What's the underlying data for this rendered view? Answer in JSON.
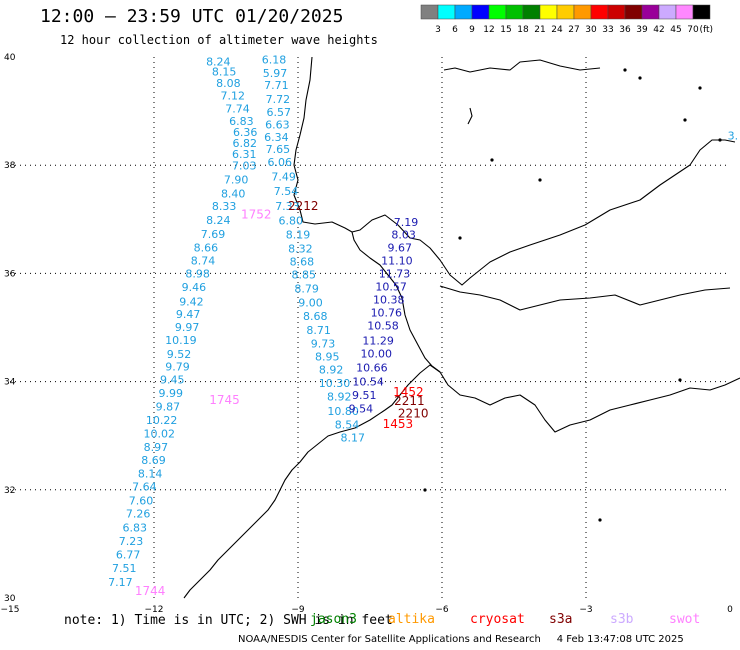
{
  "title": "12:00 — 23:59 UTC 01/20/2025",
  "subtitle": "12 hour collection of altimeter wave heights",
  "colorbar": {
    "unit": "(ft)",
    "bins": [
      {
        "label": "3",
        "color": "#808080"
      },
      {
        "label": "6",
        "color": "#00ffff"
      },
      {
        "label": "9",
        "color": "#00aaff"
      },
      {
        "label": "12",
        "color": "#0000ff"
      },
      {
        "label": "15",
        "color": "#00ff00"
      },
      {
        "label": "18",
        "color": "#00c000"
      },
      {
        "label": "21",
        "color": "#008000"
      },
      {
        "label": "24",
        "color": "#ffff00"
      },
      {
        "label": "27",
        "color": "#ffcc00"
      },
      {
        "label": "30",
        "color": "#ff9900"
      },
      {
        "label": "33",
        "color": "#ff0000"
      },
      {
        "label": "36",
        "color": "#cc0000"
      },
      {
        "label": "39",
        "color": "#800000"
      },
      {
        "label": "42",
        "color": "#990099"
      },
      {
        "label": "45",
        "color": "#ccaaff"
      },
      {
        "label": "70",
        "color": "#ff88ff"
      },
      {
        "label": "",
        "color": "#000000"
      }
    ]
  },
  "map": {
    "lon_range": [
      -15,
      0
    ],
    "lat_range": [
      30,
      40
    ],
    "lon_ticks": [
      "−15",
      "−12",
      "−9",
      "−6",
      "−3",
      "0"
    ],
    "lat_ticks": [
      "40",
      "38",
      "36",
      "34",
      "32",
      "30"
    ],
    "track_a": {
      "color": "#20a0e0",
      "points": [
        {
          "lon": -10.66,
          "lat": 39.92,
          "v": "8.24"
        },
        {
          "lon": -10.54,
          "lat": 39.73,
          "v": "8.15"
        },
        {
          "lon": -10.45,
          "lat": 39.52,
          "v": "8.08"
        },
        {
          "lon": -10.36,
          "lat": 39.29,
          "v": "7.12"
        },
        {
          "lon": -10.26,
          "lat": 39.05,
          "v": "7.74"
        },
        {
          "lon": -10.18,
          "lat": 38.82,
          "v": "6.83"
        },
        {
          "lon": -10.1,
          "lat": 38.61,
          "v": "6.36"
        },
        {
          "lon": -10.11,
          "lat": 38.41,
          "v": "6.82"
        },
        {
          "lon": -10.12,
          "lat": 38.21,
          "v": "6.31"
        },
        {
          "lon": -10.12,
          "lat": 37.99,
          "v": "7.03"
        },
        {
          "lon": -10.29,
          "lat": 37.74,
          "v": "7.90"
        },
        {
          "lon": -10.35,
          "lat": 37.48,
          "v": "8.40"
        },
        {
          "lon": -10.54,
          "lat": 37.25,
          "v": "8.33"
        },
        {
          "lon": -10.66,
          "lat": 36.99,
          "v": "8.24"
        },
        {
          "lon": -10.77,
          "lat": 36.73,
          "v": "7.69"
        },
        {
          "lon": -10.92,
          "lat": 36.48,
          "v": "8.66"
        },
        {
          "lon": -10.98,
          "lat": 36.24,
          "v": "8.74"
        },
        {
          "lon": -11.09,
          "lat": 36.0,
          "v": "8.98"
        },
        {
          "lon": -11.17,
          "lat": 35.75,
          "v": "9.46"
        },
        {
          "lon": -11.22,
          "lat": 35.48,
          "v": "9.42"
        },
        {
          "lon": -11.29,
          "lat": 35.25,
          "v": "9.47"
        },
        {
          "lon": -11.31,
          "lat": 35.01,
          "v": "9.97"
        },
        {
          "lon": -11.44,
          "lat": 34.77,
          "v": "10.19"
        },
        {
          "lon": -11.48,
          "lat": 34.51,
          "v": "9.52"
        },
        {
          "lon": -11.51,
          "lat": 34.28,
          "v": "9.79"
        },
        {
          "lon": -11.62,
          "lat": 34.04,
          "v": "9.45"
        },
        {
          "lon": -11.65,
          "lat": 33.79,
          "v": "9.99"
        },
        {
          "lon": -11.71,
          "lat": 33.54,
          "v": "9.87"
        },
        {
          "lon": -11.84,
          "lat": 33.29,
          "v": "10.22"
        },
        {
          "lon": -11.89,
          "lat": 33.04,
          "v": "10.02"
        },
        {
          "lon": -11.96,
          "lat": 32.79,
          "v": "8.97"
        },
        {
          "lon": -12.01,
          "lat": 32.55,
          "v": "8.69"
        },
        {
          "lon": -12.08,
          "lat": 32.3,
          "v": "8.14"
        },
        {
          "lon": -12.2,
          "lat": 32.06,
          "v": "7.64"
        },
        {
          "lon": -12.27,
          "lat": 31.8,
          "v": "7.60"
        },
        {
          "lon": -12.33,
          "lat": 31.56,
          "v": "7.26"
        },
        {
          "lon": -12.4,
          "lat": 31.3,
          "v": "6.83"
        },
        {
          "lon": -12.48,
          "lat": 31.05,
          "v": "7.23"
        },
        {
          "lon": -12.54,
          "lat": 30.8,
          "v": "6.77"
        },
        {
          "lon": -12.62,
          "lat": 30.55,
          "v": "7.51"
        },
        {
          "lon": -12.7,
          "lat": 30.3,
          "v": "7.17"
        }
      ]
    },
    "track_b": {
      "color": "#20a0e0",
      "points": [
        {
          "lon": -9.5,
          "lat": 39.95,
          "v": "6.18"
        },
        {
          "lon": -9.48,
          "lat": 39.7,
          "v": "5.97"
        },
        {
          "lon": -9.45,
          "lat": 39.48,
          "v": "7.71"
        },
        {
          "lon": -9.42,
          "lat": 39.22,
          "v": "7.72"
        },
        {
          "lon": -9.4,
          "lat": 38.98,
          "v": "6.57"
        },
        {
          "lon": -9.43,
          "lat": 38.75,
          "v": "6.63"
        },
        {
          "lon": -9.45,
          "lat": 38.52,
          "v": "6.34"
        },
        {
          "lon": -9.42,
          "lat": 38.3,
          "v": "7.65"
        },
        {
          "lon": -9.38,
          "lat": 38.06,
          "v": "6.06"
        },
        {
          "lon": -9.3,
          "lat": 37.79,
          "v": "7.49"
        },
        {
          "lon": -9.25,
          "lat": 37.52,
          "v": "7.54"
        },
        {
          "lon": -9.22,
          "lat": 37.25,
          "v": "7.33"
        },
        {
          "lon": -9.15,
          "lat": 36.98,
          "v": "6.80"
        },
        {
          "lon": -9.0,
          "lat": 36.72,
          "v": "8.19"
        },
        {
          "lon": -8.95,
          "lat": 36.46,
          "v": "8.32"
        },
        {
          "lon": -8.92,
          "lat": 36.22,
          "v": "8.68"
        },
        {
          "lon": -8.88,
          "lat": 35.98,
          "v": "8.85"
        },
        {
          "lon": -8.82,
          "lat": 35.72,
          "v": "8.79"
        },
        {
          "lon": -8.74,
          "lat": 35.46,
          "v": "9.00"
        },
        {
          "lon": -8.64,
          "lat": 35.21,
          "v": "8.68"
        },
        {
          "lon": -8.57,
          "lat": 34.95,
          "v": "8.71"
        },
        {
          "lon": -8.48,
          "lat": 34.7,
          "v": "9.73"
        },
        {
          "lon": -8.39,
          "lat": 34.46,
          "v": "8.95"
        },
        {
          "lon": -8.31,
          "lat": 34.22,
          "v": "8.92"
        },
        {
          "lon": -8.24,
          "lat": 33.97,
          "v": "10.30"
        },
        {
          "lon": -8.14,
          "lat": 33.72,
          "v": "8.92"
        },
        {
          "lon": -8.06,
          "lat": 33.46,
          "v": "10.80"
        },
        {
          "lon": -7.98,
          "lat": 33.21,
          "v": "8.54"
        },
        {
          "lon": -7.86,
          "lat": 32.97,
          "v": "8.17"
        }
      ]
    },
    "track_c": {
      "color": "#1a1ab0",
      "points": [
        {
          "lon": -6.75,
          "lat": 36.95,
          "v": "7.19"
        },
        {
          "lon": -6.8,
          "lat": 36.72,
          "v": "8.03"
        },
        {
          "lon": -6.88,
          "lat": 36.48,
          "v": "9.67"
        },
        {
          "lon": -6.94,
          "lat": 36.24,
          "v": "11.10"
        },
        {
          "lon": -6.99,
          "lat": 36.0,
          "v": "11.73"
        },
        {
          "lon": -7.06,
          "lat": 35.76,
          "v": "10.57"
        },
        {
          "lon": -7.11,
          "lat": 35.52,
          "v": "10.38"
        },
        {
          "lon": -7.16,
          "lat": 35.28,
          "v": "10.76"
        },
        {
          "lon": -7.23,
          "lat": 35.04,
          "v": "10.58"
        },
        {
          "lon": -7.33,
          "lat": 34.76,
          "v": "11.29"
        },
        {
          "lon": -7.37,
          "lat": 34.52,
          "v": "10.00"
        },
        {
          "lon": -7.46,
          "lat": 34.26,
          "v": "10.66"
        },
        {
          "lon": -7.54,
          "lat": 34.0,
          "v": "10.54"
        },
        {
          "lon": -7.62,
          "lat": 33.75,
          "v": "9.51"
        },
        {
          "lon": -7.69,
          "lat": 33.5,
          "v": "9.54"
        }
      ]
    },
    "stamps": [
      {
        "lon": -10.53,
        "lat": 33.66,
        "text": "1745",
        "color": "#ff80ff"
      },
      {
        "lon": -9.87,
        "lat": 37.09,
        "text": "1752",
        "color": "#ff80ff"
      },
      {
        "lon": -12.08,
        "lat": 30.13,
        "text": "1744",
        "color": "#ff80ff"
      },
      {
        "lon": -8.89,
        "lat": 37.25,
        "text": "2212",
        "color": "#800000"
      },
      {
        "lon": -6.7,
        "lat": 33.81,
        "text": "1452",
        "color": "#ff0000"
      },
      {
        "lon": -6.68,
        "lat": 33.64,
        "text": "2211",
        "color": "#800000"
      },
      {
        "lon": -6.6,
        "lat": 33.41,
        "text": "2210",
        "color": "#800000"
      },
      {
        "lon": -6.92,
        "lat": 33.22,
        "text": "1453",
        "color": "#ff0000"
      }
    ],
    "edge_label": {
      "lon": -0.05,
      "lat": 38.55,
      "text": "3.",
      "color": "#20a0e0"
    }
  },
  "footnote": "note: 1) Time is in UTC; 2) SWH is in feet",
  "legend": [
    {
      "label": "jason3",
      "color": "#008000"
    },
    {
      "label": "altika",
      "color": "#ff9900"
    },
    {
      "label": "cryosat",
      "color": "#ff0000"
    },
    {
      "label": "s3a",
      "color": "#800000"
    },
    {
      "label": "s3b",
      "color": "#ccaaff"
    },
    {
      "label": "swot",
      "color": "#ff80ff"
    }
  ],
  "credit": "NOAA/NESDIS Center for Satellite Applications and Research     4 Feb 13:47:08 UTC 2025"
}
